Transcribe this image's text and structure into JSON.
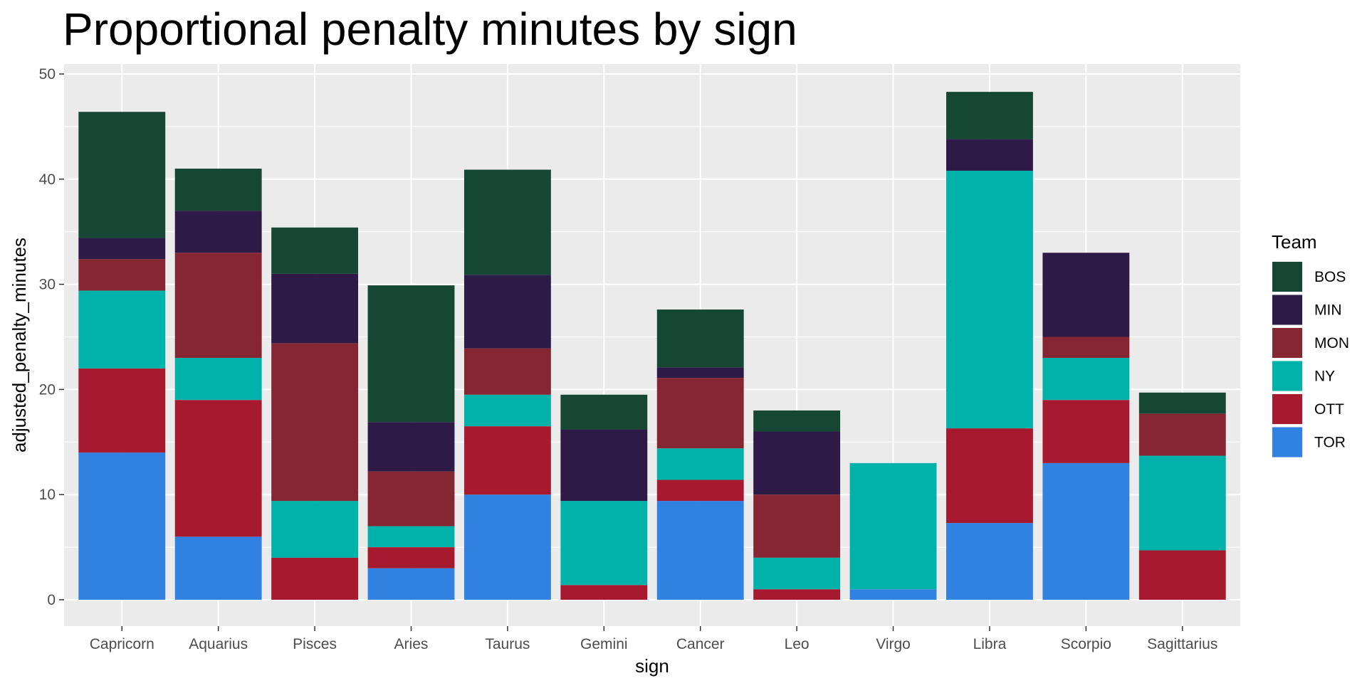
{
  "chart_data": {
    "type": "bar",
    "stacked": true,
    "title": "Proportional penalty minutes by sign",
    "xlabel": "sign",
    "ylabel": "adjusted_penalty_minutes",
    "ylim": [
      0,
      50
    ],
    "yticks": [
      0,
      10,
      20,
      30,
      40,
      50
    ],
    "grid": true,
    "legend_title": "Team",
    "legend_position": "right",
    "categories": [
      "Capricorn",
      "Aquarius",
      "Pisces",
      "Aries",
      "Taurus",
      "Gemini",
      "Cancer",
      "Leo",
      "Virgo",
      "Libra",
      "Scorpio",
      "Sagittarius"
    ],
    "series": [
      {
        "name": "TOR",
        "color": "#3182e0",
        "values": [
          14.0,
          6.0,
          0,
          3.0,
          10.0,
          0,
          9.4,
          0,
          1.0,
          7.3,
          13.0,
          0
        ]
      },
      {
        "name": "OTT",
        "color": "#a6192e",
        "values": [
          8.0,
          13.0,
          4.0,
          2.0,
          6.5,
          1.4,
          2.0,
          1.0,
          0,
          9.0,
          6.0,
          4.7
        ]
      },
      {
        "name": "NY",
        "color": "#00b2a9",
        "values": [
          7.4,
          4.0,
          5.4,
          2.0,
          3.0,
          8.0,
          3.0,
          3.0,
          12.0,
          24.5,
          4.0,
          9.0
        ]
      },
      {
        "name": "MON",
        "color": "#862633",
        "values": [
          3.0,
          10.0,
          15.0,
          5.2,
          4.4,
          0,
          6.7,
          6.0,
          0,
          0,
          2.0,
          4.0
        ]
      },
      {
        "name": "MIN",
        "color": "#2e1a47",
        "values": [
          2.0,
          4.0,
          6.6,
          4.7,
          7.0,
          6.8,
          1.0,
          6.0,
          0,
          3.0,
          8.0,
          0
        ]
      },
      {
        "name": "BOS",
        "color": "#154734",
        "values": [
          12.0,
          4.0,
          4.4,
          13.0,
          10.0,
          3.3,
          5.5,
          2.0,
          0,
          4.5,
          0,
          2.0
        ]
      }
    ],
    "legend_order": [
      "BOS",
      "MIN",
      "MON",
      "NY",
      "OTT",
      "TOR"
    ]
  }
}
